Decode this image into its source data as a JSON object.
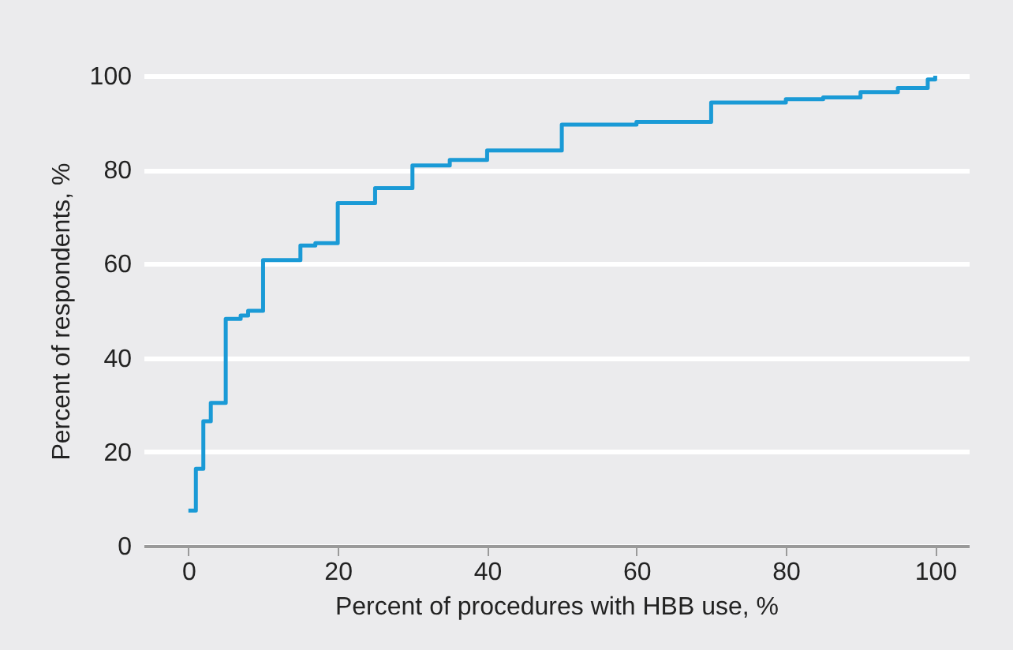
{
  "chart_data": {
    "type": "step",
    "xlabel": "Percent of procedures with HBB use, %",
    "ylabel": "Percent of respondents, %",
    "x": [
      0,
      1,
      2,
      3,
      5,
      7,
      8,
      10,
      15,
      17,
      20,
      25,
      30,
      35,
      40,
      50,
      60,
      70,
      80,
      85,
      90,
      95,
      99,
      100
    ],
    "series": [
      {
        "color": "#1a9ad6",
        "values": [
          7.5,
          16.4,
          26.5,
          30.4,
          48.3,
          49,
          50,
          60.8,
          63.9,
          64.4,
          72.9,
          76.1,
          80.9,
          82.1,
          84.1,
          89.6,
          90.2,
          94.3,
          95,
          95.4,
          96.5,
          97.4,
          99.2,
          100
        ]
      }
    ],
    "xlim": [
      -6,
      104.5
    ],
    "xticks": [
      0,
      20,
      40,
      60,
      80,
      100
    ],
    "ylim": [
      0,
      100
    ],
    "yticks": [
      0,
      20,
      40,
      60,
      80,
      100
    ],
    "grid": "y",
    "marker": "none",
    "line_style": "solid"
  }
}
